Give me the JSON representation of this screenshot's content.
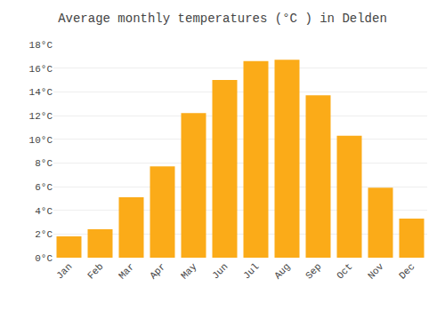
{
  "chart_data": {
    "type": "bar",
    "title": "Average monthly temperatures (°C ) in Delden",
    "categories": [
      "Jan",
      "Feb",
      "Mar",
      "Apr",
      "May",
      "Jun",
      "Jul",
      "Aug",
      "Sep",
      "Oct",
      "Nov",
      "Dec"
    ],
    "values": [
      1.8,
      2.4,
      5.1,
      7.7,
      12.2,
      15.0,
      16.6,
      16.7,
      13.7,
      10.3,
      5.9,
      3.3
    ],
    "color": "#FBAB18",
    "ylim": [
      0,
      18
    ],
    "yticks": [
      {
        "value": 0,
        "label": "0°C"
      },
      {
        "value": 2,
        "label": "2°C"
      },
      {
        "value": 4,
        "label": "4°C"
      },
      {
        "value": 6,
        "label": "6°C"
      },
      {
        "value": 8,
        "label": "8°C"
      },
      {
        "value": 10,
        "label": "10°C"
      },
      {
        "value": 12,
        "label": "12°C"
      },
      {
        "value": 14,
        "label": "14°C"
      },
      {
        "value": 16,
        "label": "16°C"
      },
      {
        "value": 18,
        "label": "18°C"
      }
    ],
    "grid": true
  }
}
